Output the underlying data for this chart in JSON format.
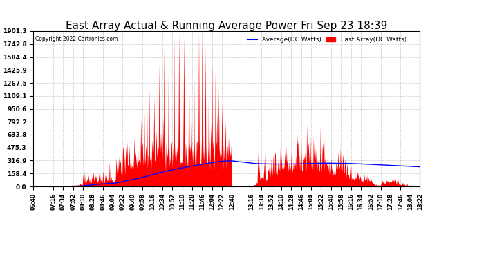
{
  "title": "East Array Actual & Running Average Power Fri Sep 23 18:39",
  "copyright": "Copyright 2022 Cartronics.com",
  "legend_avg": "Average(DC Watts)",
  "legend_east": "East Array(DC Watts)",
  "legend_avg_color": "blue",
  "legend_east_color": "red",
  "yticks": [
    0.0,
    158.4,
    316.9,
    475.3,
    633.8,
    792.2,
    950.6,
    1109.1,
    1267.5,
    1425.9,
    1584.4,
    1742.8,
    1901.3
  ],
  "ylim": [
    0,
    1901.3
  ],
  "background_color": "#ffffff",
  "grid_color": "#bbbbbb",
  "title_fontsize": 11,
  "xtick_labels": [
    "06:40",
    "07:16",
    "07:34",
    "07:52",
    "08:10",
    "08:28",
    "08:46",
    "09:04",
    "09:22",
    "09:40",
    "09:58",
    "10:16",
    "10:34",
    "10:52",
    "11:10",
    "11:28",
    "11:46",
    "12:04",
    "12:22",
    "12:40",
    "13:16",
    "13:34",
    "13:52",
    "14:10",
    "14:28",
    "14:46",
    "15:04",
    "15:22",
    "15:40",
    "15:58",
    "16:16",
    "16:34",
    "16:52",
    "17:10",
    "17:28",
    "17:46",
    "18:04",
    "18:22"
  ]
}
